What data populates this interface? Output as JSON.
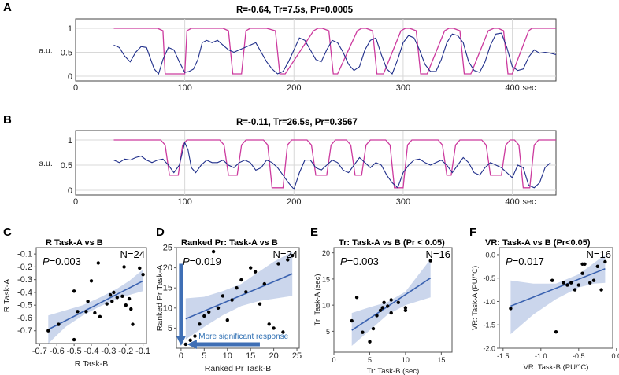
{
  "colors": {
    "signal": "#1f2e8a",
    "task": "#cc3a9e",
    "fit": "#3a62b0",
    "band": "#b9c8e6",
    "points": "#000000",
    "arrow": "#3f6fb5"
  },
  "chart_data": [
    {
      "id": "A",
      "type": "line",
      "panel_letter": "A",
      "title": "R=-0.64, Tr=7.5s, Pr=0.0005",
      "ylabel": "a.u.",
      "xunit": "sec",
      "xlim": [
        0,
        440
      ],
      "ylim": [
        0,
        1.05
      ],
      "xticks": [
        0,
        100,
        200,
        300,
        400
      ],
      "yticks": [
        0,
        0.5,
        1
      ],
      "series": [
        {
          "name": "task",
          "x": [
            35,
            75,
            80,
            82,
            100,
            102,
            106,
            108,
            135,
            140,
            144,
            152,
            156,
            160,
            175,
            183,
            187,
            192,
            218,
            222,
            226,
            232,
            236,
            240,
            258,
            262,
            266,
            272,
            276,
            282,
            298,
            302,
            306,
            312,
            316,
            322,
            338,
            342,
            346,
            352,
            356,
            362,
            378,
            383,
            387,
            392,
            396,
            400,
            415,
            418,
            422,
            440
          ],
          "y": [
            1,
            1,
            0.95,
            0.05,
            0.05,
            0.95,
            1,
            1,
            1,
            0.95,
            0.05,
            0.05,
            0.95,
            1,
            1,
            0.95,
            0.05,
            0.05,
            0.95,
            1,
            1,
            0.95,
            0.05,
            0.05,
            0.95,
            1,
            1,
            0.95,
            0.05,
            0.05,
            0.95,
            1,
            1,
            0.95,
            0.05,
            0.05,
            0.95,
            1,
            1,
            0.95,
            0.05,
            0.05,
            0.95,
            1,
            1,
            0.95,
            0.05,
            0.05,
            0.95,
            1,
            1,
            1
          ]
        },
        {
          "name": "signal",
          "x": [
            35,
            40,
            45,
            50,
            55,
            60,
            65,
            68,
            72,
            76,
            80,
            85,
            90,
            95,
            100,
            104,
            108,
            112,
            116,
            120,
            125,
            130,
            135,
            140,
            145,
            150,
            155,
            160,
            165,
            170,
            175,
            180,
            185,
            190,
            195,
            200,
            205,
            210,
            215,
            220,
            225,
            230,
            235,
            240,
            245,
            250,
            255,
            260,
            265,
            270,
            275,
            280,
            285,
            290,
            295,
            300,
            305,
            310,
            315,
            320,
            325,
            330,
            335,
            340,
            345,
            350,
            355,
            360,
            365,
            370,
            375,
            380,
            385,
            390,
            395,
            400,
            405,
            410,
            415,
            420,
            425,
            430,
            435,
            440
          ],
          "y": [
            0.65,
            0.6,
            0.42,
            0.3,
            0.5,
            0.62,
            0.6,
            0.4,
            0.15,
            0.05,
            0.35,
            0.6,
            0.55,
            0.3,
            0.08,
            0.1,
            0.15,
            0.35,
            0.7,
            0.75,
            0.7,
            0.75,
            0.65,
            0.55,
            0.5,
            0.55,
            0.6,
            0.65,
            0.7,
            0.5,
            0.3,
            0.15,
            0.05,
            0.1,
            0.3,
            0.55,
            0.8,
            0.75,
            0.55,
            0.35,
            0.3,
            0.55,
            0.75,
            0.7,
            0.5,
            0.25,
            0.12,
            0.2,
            0.55,
            0.75,
            0.8,
            0.45,
            0.15,
            0.05,
            0.35,
            0.7,
            0.85,
            0.8,
            0.55,
            0.25,
            0.1,
            0.1,
            0.35,
            0.7,
            0.88,
            0.85,
            0.7,
            0.3,
            0.12,
            0.08,
            0.3,
            0.65,
            0.88,
            0.9,
            0.6,
            0.2,
            0.12,
            0.15,
            0.4,
            0.55,
            0.48,
            0.5,
            0.48,
            0.45
          ]
        }
      ]
    },
    {
      "id": "B",
      "type": "line",
      "panel_letter": "B",
      "title": "R=-0.11, Tr=26.5s, Pr=0.3567",
      "ylabel": "a.u.",
      "xunit": "sec",
      "xlim": [
        0,
        440
      ],
      "ylim": [
        0,
        1.05
      ],
      "xticks": [
        0,
        100,
        200,
        300,
        400
      ],
      "yticks": [
        0,
        0.5,
        1
      ],
      "series": [
        {
          "name": "task",
          "x": [
            35,
            78,
            82,
            86,
            94,
            98,
            102,
            132,
            136,
            140,
            148,
            152,
            156,
            172,
            176,
            180,
            190,
            194,
            198,
            212,
            216,
            220,
            230,
            234,
            238,
            248,
            252,
            256,
            262,
            266,
            270,
            284,
            288,
            292,
            300,
            304,
            308,
            332,
            336,
            340,
            344,
            348,
            352,
            372,
            376,
            380,
            390,
            394,
            398,
            402,
            406,
            410,
            416,
            420,
            424,
            440
          ],
          "y": [
            1,
            1,
            0.9,
            0.3,
            0.3,
            0.9,
            1,
            1,
            0.9,
            0.3,
            0.3,
            0.9,
            1,
            1,
            0.9,
            0.05,
            0.05,
            0.9,
            1,
            1,
            0.9,
            0.3,
            0.3,
            0.9,
            1,
            1,
            0.9,
            0.3,
            0.3,
            0.9,
            1,
            1,
            0.9,
            0.05,
            0.05,
            0.9,
            1,
            1,
            0.9,
            0.3,
            0.3,
            0.9,
            1,
            1,
            0.9,
            0.3,
            0.3,
            0.9,
            1,
            1,
            0.9,
            0.05,
            0.05,
            0.9,
            1,
            1
          ]
        },
        {
          "name": "signal",
          "x": [
            35,
            40,
            45,
            50,
            55,
            60,
            65,
            70,
            75,
            80,
            85,
            90,
            95,
            100,
            103,
            106,
            110,
            115,
            120,
            125,
            130,
            135,
            140,
            145,
            150,
            155,
            160,
            165,
            170,
            175,
            180,
            185,
            190,
            195,
            200,
            205,
            210,
            215,
            220,
            225,
            230,
            235,
            240,
            245,
            250,
            255,
            260,
            265,
            270,
            275,
            280,
            285,
            290,
            295,
            300,
            305,
            310,
            315,
            320,
            325,
            330,
            335,
            340,
            345,
            350,
            355,
            360,
            365,
            370,
            375,
            380,
            385,
            390,
            395,
            400,
            405,
            410,
            415,
            420,
            425,
            430,
            435
          ],
          "y": [
            0.6,
            0.55,
            0.62,
            0.6,
            0.65,
            0.68,
            0.6,
            0.55,
            0.6,
            0.62,
            0.5,
            0.35,
            0.5,
            0.95,
            0.8,
            0.45,
            0.35,
            0.5,
            0.6,
            0.55,
            0.55,
            0.6,
            0.5,
            0.45,
            0.55,
            0.6,
            0.55,
            0.4,
            0.45,
            0.6,
            0.55,
            0.45,
            0.3,
            0.15,
            0.02,
            0.35,
            0.6,
            0.6,
            0.45,
            0.4,
            0.5,
            0.6,
            0.55,
            0.4,
            0.35,
            0.5,
            0.65,
            0.55,
            0.45,
            0.55,
            0.5,
            0.3,
            0.15,
            0.05,
            0.35,
            0.5,
            0.6,
            0.62,
            0.55,
            0.5,
            0.55,
            0.6,
            0.5,
            0.35,
            0.5,
            0.65,
            0.55,
            0.35,
            0.3,
            0.45,
            0.55,
            0.5,
            0.45,
            0.35,
            0.25,
            0.5,
            0.45,
            0.1,
            0.05,
            0.15,
            0.45,
            0.55
          ]
        }
      ]
    },
    {
      "id": "C",
      "type": "scatter",
      "panel_letter": "C",
      "title": "R Task-A vs B",
      "xlabel": "R Task-B",
      "ylabel": "R Task-A",
      "xlim": [
        -0.72,
        -0.08
      ],
      "ylim": [
        -0.8,
        -0.05
      ],
      "xticks": [
        -0.7,
        -0.6,
        -0.5,
        -0.4,
        -0.3,
        -0.2,
        -0.1
      ],
      "xtick_labels": [
        "-0.7",
        "-0.6",
        "-0.5",
        "-0.4",
        "-0.3",
        "-0.2",
        "-0.1"
      ],
      "yticks": [
        -0.7,
        -0.6,
        -0.5,
        -0.4,
        -0.3,
        -0.2,
        -0.1
      ],
      "ytick_labels": [
        "-0.7",
        "-0.6",
        "-0.5",
        "-0.4",
        "-0.3",
        "-0.2",
        "-0.1"
      ],
      "stat_prefix": "P",
      "stat_value": "=0.003",
      "n_label": "N=24",
      "x": [
        -0.65,
        -0.59,
        -0.5,
        -0.48,
        -0.5,
        -0.43,
        -0.42,
        -0.4,
        -0.38,
        -0.36,
        -0.35,
        -0.31,
        -0.29,
        -0.28,
        -0.27,
        -0.25,
        -0.22,
        -0.21,
        -0.2,
        -0.18,
        -0.17,
        -0.16,
        -0.12,
        -0.1
      ],
      "y": [
        -0.7,
        -0.65,
        -0.77,
        -0.55,
        -0.39,
        -0.55,
        -0.47,
        -0.31,
        -0.56,
        -0.17,
        -0.59,
        -0.49,
        -0.42,
        -0.47,
        -0.4,
        -0.44,
        -0.43,
        -0.2,
        -0.5,
        -0.45,
        -0.53,
        -0.65,
        -0.21,
        -0.26
      ],
      "fit": {
        "x": [
          -0.65,
          -0.1
        ],
        "y": [
          -0.69,
          -0.31
        ]
      },
      "band": {
        "x": [
          -0.65,
          -0.55,
          -0.45,
          -0.35,
          -0.25,
          -0.18,
          -0.1
        ],
        "lower": [
          -0.8,
          -0.67,
          -0.58,
          -0.51,
          -0.45,
          -0.42,
          -0.39
        ],
        "upper": [
          -0.58,
          -0.54,
          -0.5,
          -0.44,
          -0.37,
          -0.31,
          -0.22
        ]
      }
    },
    {
      "id": "D",
      "type": "scatter",
      "panel_letter": "D",
      "title": "Ranked Pr: Task-A vs B",
      "xlabel": "Ranked Pr Task-B",
      "ylabel": "Ranked Pr Task-A",
      "xlim": [
        -1,
        25.5
      ],
      "ylim": [
        0,
        25
      ],
      "xticks": [
        0,
        5,
        10,
        15,
        20,
        25
      ],
      "xtick_labels": [
        "0",
        "5",
        "10",
        "15",
        "20",
        "25"
      ],
      "yticks": [
        5,
        10,
        15,
        20,
        25
      ],
      "ytick_labels": [
        "5",
        "10",
        "15",
        "20",
        "25"
      ],
      "stat_prefix": "P",
      "stat_value": "=0.019",
      "n_label": "N=24",
      "annotation": "More significant response",
      "x": [
        1,
        2,
        3,
        4,
        5,
        6,
        7,
        8,
        9,
        10,
        11,
        12,
        13,
        14,
        15,
        16,
        17,
        18,
        19,
        20,
        21,
        22,
        23,
        24
      ],
      "y": [
        1,
        2,
        3,
        6,
        8,
        9,
        24,
        10,
        13,
        7,
        12,
        15,
        17,
        14,
        20,
        19,
        11,
        16,
        6,
        5,
        21,
        4,
        22,
        23
      ],
      "fit": {
        "x": [
          1,
          24
        ],
        "y": [
          7.3,
          18.5
        ]
      },
      "band": {
        "x": [
          1,
          5,
          9,
          13,
          17,
          20,
          24
        ],
        "lower": [
          2.2,
          5.3,
          8.2,
          10.5,
          11.8,
          12.3,
          13.0
        ],
        "upper": [
          12.4,
          12.8,
          14.2,
          16.0,
          19.2,
          21.5,
          24.0
        ]
      }
    },
    {
      "id": "E",
      "type": "scatter",
      "panel_letter": "E",
      "title": "Tr: Task-A vs B (Pr < 0.05)",
      "xlabel": "Tr: Task-B (sec)",
      "ylabel": "Tr: Task-A (sec)",
      "xlim": [
        0,
        16.5
      ],
      "ylim": [
        1,
        21
      ],
      "xticks": [
        0,
        5,
        10,
        15
      ],
      "xtick_labels": [
        "0",
        "5",
        "10",
        "15"
      ],
      "yticks": [
        5,
        10,
        15,
        20
      ],
      "ytick_labels": [
        "5",
        "10",
        "15",
        "20"
      ],
      "stat_prefix": "P",
      "stat_value": "=0.003",
      "n_label": "N=16",
      "x": [
        2.5,
        3.2,
        4,
        5,
        5.5,
        6,
        6.5,
        6.8,
        7,
        7.5,
        8,
        8,
        9,
        10,
        10,
        13.5
      ],
      "y": [
        7,
        11.5,
        4.8,
        3,
        5.5,
        8,
        9,
        9.5,
        10.5,
        9.8,
        8.5,
        11,
        10.5,
        9,
        9.5,
        18.5
      ],
      "fit": {
        "x": [
          2.5,
          13.5
        ],
        "y": [
          5.2,
          15.2
        ]
      },
      "band": {
        "x": [
          2.5,
          5,
          7.5,
          10,
          13.5
        ],
        "lower": [
          2.2,
          5.2,
          8.2,
          10.0,
          11.5
        ],
        "upper": [
          8.5,
          9.6,
          10.6,
          12.6,
          18.8
        ]
      }
    },
    {
      "id": "F",
      "type": "scatter",
      "panel_letter": "F",
      "title": "VR: Task-A vs B (Pr<0.05)",
      "xlabel": "VR: Task-B (PU/°C)",
      "ylabel": "VR: Task-A (PU/°C)",
      "xlim": [
        -1.55,
        -0.05
      ],
      "ylim": [
        -2.0,
        0.15
      ],
      "xticks": [
        -1.5,
        -1.0,
        -0.5,
        0.0
      ],
      "xtick_labels": [
        "-1.5",
        "-1.0",
        "-0.5",
        "0.0"
      ],
      "yticks": [
        -2.0,
        -1.5,
        -1.0,
        -0.5,
        0.0
      ],
      "ytick_labels": [
        "-2.0",
        "-1.5",
        "-1.0",
        "-0.5",
        "0.0"
      ],
      "stat_prefix": "P",
      "stat_value": "=0.017",
      "n_label": "N=16",
      "x": [
        -1.4,
        -0.85,
        -0.8,
        -0.7,
        -0.65,
        -0.6,
        -0.55,
        -0.5,
        -0.45,
        -0.45,
        -0.42,
        -0.35,
        -0.3,
        -0.25,
        -0.2,
        -0.15
      ],
      "y": [
        -1.15,
        -0.55,
        -1.65,
        -0.6,
        -0.65,
        -0.6,
        -0.75,
        -0.65,
        -0.2,
        -0.4,
        -0.2,
        -0.6,
        -0.55,
        -0.25,
        -0.75,
        -0.15
      ],
      "fit": {
        "x": [
          -1.4,
          -0.15
        ],
        "y": [
          -1.1,
          -0.3
        ]
      },
      "band": {
        "x": [
          -1.4,
          -1.1,
          -0.8,
          -0.5,
          -0.3,
          -0.15
        ],
        "lower": [
          -1.7,
          -1.28,
          -0.95,
          -0.7,
          -0.62,
          -0.6
        ],
        "upper": [
          -0.55,
          -0.62,
          -0.62,
          -0.42,
          -0.18,
          0.0
        ]
      }
    }
  ]
}
